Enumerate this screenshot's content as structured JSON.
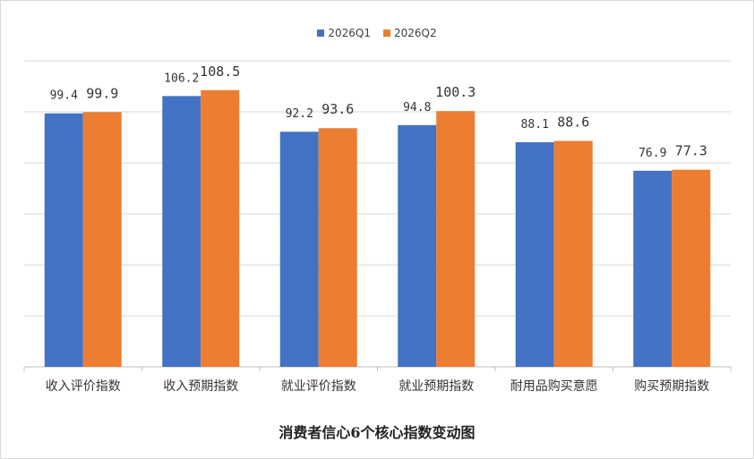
{
  "chart_data": {
    "type": "bar",
    "title": "消费者信心6个核心指数变动图",
    "categories": [
      "收入评价指数",
      "收入预期指数",
      "就业评价指数",
      "就业预期指数",
      "耐用品购买意愿",
      "购买预期指数"
    ],
    "series": [
      {
        "name": "2026Q1",
        "color": "#4472c4",
        "values": [
          99.4,
          106.2,
          92.2,
          94.8,
          88.1,
          76.9
        ],
        "labels": [
          "99.4",
          "106.2",
          "92.2",
          "94.8",
          "88.1",
          "76.9"
        ]
      },
      {
        "name": "2026Q2",
        "color": "#ed7d31",
        "values": [
          99.9,
          108.5,
          93.6,
          100.3,
          88.6,
          77.3
        ],
        "labels": [
          "99.9",
          "108.5",
          "93.6",
          "100.3",
          "88.6",
          "77.3"
        ]
      }
    ],
    "xlabel": "",
    "ylabel": "",
    "ylim": [
      0,
      120
    ],
    "grid": true,
    "legend": "top-center",
    "y_tick_labels_shown": false
  }
}
